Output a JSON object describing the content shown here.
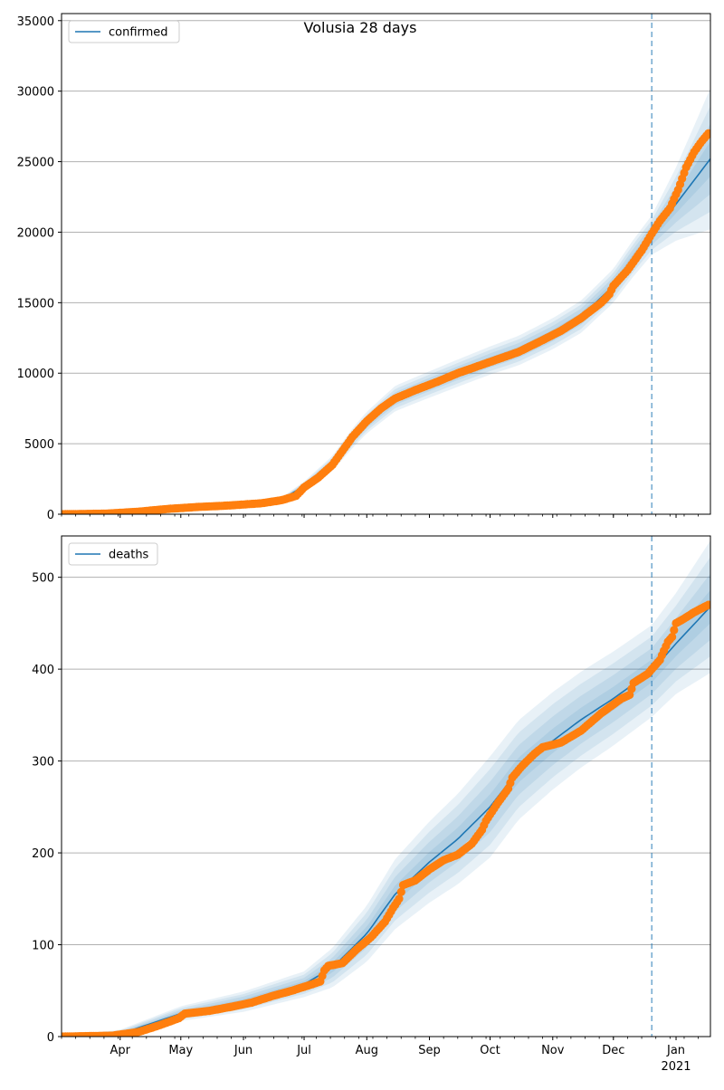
{
  "figure": {
    "title": "Volusia 28 days"
  },
  "colors": {
    "model_line": "#1f77b4",
    "observed_points": "#ff7f0e",
    "band": "#1f77b4",
    "forecast_marker": "#1f77b4",
    "grid": "#b0b0b0"
  },
  "chart_data": [
    {
      "type": "line",
      "title": "Volusia 28 days",
      "legend": {
        "label": "confirmed",
        "placement": "top-left"
      },
      "x_axis": {
        "ticks": [
          {
            "label": "Apr",
            "date": "2020-04-01"
          },
          {
            "label": "May",
            "date": "2020-05-01"
          },
          {
            "label": "Jun",
            "date": "2020-06-01"
          },
          {
            "label": "Jul",
            "date": "2020-07-01"
          },
          {
            "label": "Aug",
            "date": "2020-08-01"
          },
          {
            "label": "Sep",
            "date": "2020-09-01"
          },
          {
            "label": "Oct",
            "date": "2020-10-01"
          },
          {
            "label": "Nov",
            "date": "2020-11-01"
          },
          {
            "label": "Dec",
            "date": "2020-12-01"
          },
          {
            "label": "Jan",
            "sublabel": "2021",
            "date": "2021-01-01"
          }
        ],
        "tick_labels_visible": false,
        "range": [
          "2020-03-03",
          "2021-01-18"
        ]
      },
      "y_axis": {
        "ylim": [
          0,
          35500
        ],
        "ticks": [
          0,
          5000,
          10000,
          15000,
          20000,
          25000,
          30000,
          35000
        ]
      },
      "grid": "y",
      "forecast_start": "2020-12-20",
      "model": [
        {
          "x": "2020-03-03",
          "y": 20
        },
        {
          "x": "2020-03-25",
          "y": 60
        },
        {
          "x": "2020-04-15",
          "y": 250
        },
        {
          "x": "2020-05-01",
          "y": 480
        },
        {
          "x": "2020-06-01",
          "y": 700
        },
        {
          "x": "2020-06-20",
          "y": 1050
        },
        {
          "x": "2020-07-01",
          "y": 2000
        },
        {
          "x": "2020-07-15",
          "y": 3600
        },
        {
          "x": "2020-07-25",
          "y": 5400
        },
        {
          "x": "2020-08-01",
          "y": 6500
        },
        {
          "x": "2020-08-15",
          "y": 8200
        },
        {
          "x": "2020-09-01",
          "y": 9200
        },
        {
          "x": "2020-09-15",
          "y": 10000
        },
        {
          "x": "2020-10-01",
          "y": 10900
        },
        {
          "x": "2020-10-15",
          "y": 11600
        },
        {
          "x": "2020-11-01",
          "y": 12800
        },
        {
          "x": "2020-11-15",
          "y": 14000
        },
        {
          "x": "2020-12-01",
          "y": 16200
        },
        {
          "x": "2020-12-10",
          "y": 18000
        },
        {
          "x": "2020-12-20",
          "y": 19800
        },
        {
          "x": "2021-01-01",
          "y": 22000
        },
        {
          "x": "2021-01-18",
          "y": 25200
        }
      ],
      "band_widths": [
        {
          "x": "2020-03-03",
          "w": 10
        },
        {
          "x": "2020-06-20",
          "w": 150
        },
        {
          "x": "2020-07-25",
          "w": 700
        },
        {
          "x": "2020-08-15",
          "w": 900
        },
        {
          "x": "2020-10-01",
          "w": 1000
        },
        {
          "x": "2020-12-01",
          "w": 1200
        },
        {
          "x": "2020-12-20",
          "w": 1400
        },
        {
          "x": "2021-01-01",
          "w": 2600
        },
        {
          "x": "2021-01-18",
          "w": 5000
        }
      ],
      "observed": [
        {
          "x": "2020-03-03",
          "y": 0
        },
        {
          "x": "2020-03-25",
          "y": 40
        },
        {
          "x": "2020-04-10",
          "y": 180
        },
        {
          "x": "2020-04-25",
          "y": 380
        },
        {
          "x": "2020-05-10",
          "y": 520
        },
        {
          "x": "2020-05-25",
          "y": 620
        },
        {
          "x": "2020-06-10",
          "y": 780
        },
        {
          "x": "2020-06-20",
          "y": 1000
        },
        {
          "x": "2020-06-27",
          "y": 1300
        },
        {
          "x": "2020-07-01",
          "y": 1900
        },
        {
          "x": "2020-07-08",
          "y": 2600
        },
        {
          "x": "2020-07-15",
          "y": 3500
        },
        {
          "x": "2020-07-20",
          "y": 4500
        },
        {
          "x": "2020-07-25",
          "y": 5500
        },
        {
          "x": "2020-08-01",
          "y": 6600
        },
        {
          "x": "2020-08-08",
          "y": 7500
        },
        {
          "x": "2020-08-15",
          "y": 8200
        },
        {
          "x": "2020-08-25",
          "y": 8800
        },
        {
          "x": "2020-09-05",
          "y": 9400
        },
        {
          "x": "2020-09-15",
          "y": 10000
        },
        {
          "x": "2020-09-25",
          "y": 10500
        },
        {
          "x": "2020-10-05",
          "y": 11000
        },
        {
          "x": "2020-10-15",
          "y": 11500
        },
        {
          "x": "2020-10-25",
          "y": 12200
        },
        {
          "x": "2020-11-05",
          "y": 13000
        },
        {
          "x": "2020-11-15",
          "y": 13900
        },
        {
          "x": "2020-11-25",
          "y": 15000
        },
        {
          "x": "2020-11-29",
          "y": 15600
        },
        {
          "x": "2020-12-01",
          "y": 16200
        },
        {
          "x": "2020-12-08",
          "y": 17300
        },
        {
          "x": "2020-12-15",
          "y": 18700
        },
        {
          "x": "2020-12-20",
          "y": 19900
        },
        {
          "x": "2020-12-24",
          "y": 20800
        },
        {
          "x": "2020-12-29",
          "y": 21700
        },
        {
          "x": "2021-01-02",
          "y": 23000
        },
        {
          "x": "2021-01-06",
          "y": 24600
        },
        {
          "x": "2021-01-10",
          "y": 25700
        },
        {
          "x": "2021-01-14",
          "y": 26500
        },
        {
          "x": "2021-01-17",
          "y": 27000
        }
      ]
    },
    {
      "type": "line",
      "legend": {
        "label": "deaths",
        "placement": "top-left"
      },
      "x_axis": {
        "ticks": [
          {
            "label": "Apr",
            "date": "2020-04-01"
          },
          {
            "label": "May",
            "date": "2020-05-01"
          },
          {
            "label": "Jun",
            "date": "2020-06-01"
          },
          {
            "label": "Jul",
            "date": "2020-07-01"
          },
          {
            "label": "Aug",
            "date": "2020-08-01"
          },
          {
            "label": "Sep",
            "date": "2020-09-01"
          },
          {
            "label": "Oct",
            "date": "2020-10-01"
          },
          {
            "label": "Nov",
            "date": "2020-11-01"
          },
          {
            "label": "Dec",
            "date": "2020-12-01"
          },
          {
            "label": "Jan",
            "sublabel": "2021",
            "date": "2021-01-01"
          }
        ],
        "tick_labels_visible": true,
        "range": [
          "2020-03-03",
          "2021-01-18"
        ]
      },
      "y_axis": {
        "ylim": [
          0,
          545
        ],
        "ticks": [
          0,
          100,
          200,
          300,
          400,
          500
        ]
      },
      "grid": "y",
      "forecast_start": "2020-12-20",
      "model": [
        {
          "x": "2020-03-03",
          "y": 0
        },
        {
          "x": "2020-04-01",
          "y": 3
        },
        {
          "x": "2020-05-01",
          "y": 25
        },
        {
          "x": "2020-06-01",
          "y": 38
        },
        {
          "x": "2020-07-01",
          "y": 57
        },
        {
          "x": "2020-07-15",
          "y": 75
        },
        {
          "x": "2020-08-01",
          "y": 112
        },
        {
          "x": "2020-08-15",
          "y": 155
        },
        {
          "x": "2020-09-01",
          "y": 190
        },
        {
          "x": "2020-09-15",
          "y": 215
        },
        {
          "x": "2020-10-01",
          "y": 250
        },
        {
          "x": "2020-10-15",
          "y": 290
        },
        {
          "x": "2020-11-01",
          "y": 322
        },
        {
          "x": "2020-11-15",
          "y": 345
        },
        {
          "x": "2020-12-01",
          "y": 368
        },
        {
          "x": "2020-12-20",
          "y": 398
        },
        {
          "x": "2021-01-01",
          "y": 428
        },
        {
          "x": "2021-01-18",
          "y": 468
        }
      ],
      "band_widths": [
        {
          "x": "2020-03-03",
          "w": 1
        },
        {
          "x": "2020-05-01",
          "w": 8
        },
        {
          "x": "2020-07-01",
          "w": 14
        },
        {
          "x": "2020-08-15",
          "w": 38
        },
        {
          "x": "2020-10-01",
          "w": 55
        },
        {
          "x": "2020-12-20",
          "w": 50
        },
        {
          "x": "2021-01-01",
          "w": 55
        },
        {
          "x": "2021-01-18",
          "w": 72
        }
      ],
      "observed": [
        {
          "x": "2020-03-03",
          "y": 0
        },
        {
          "x": "2020-03-28",
          "y": 1
        },
        {
          "x": "2020-04-10",
          "y": 5
        },
        {
          "x": "2020-04-20",
          "y": 12
        },
        {
          "x": "2020-04-30",
          "y": 20
        },
        {
          "x": "2020-05-03",
          "y": 25
        },
        {
          "x": "2020-05-15",
          "y": 28
        },
        {
          "x": "2020-05-25",
          "y": 32
        },
        {
          "x": "2020-06-05",
          "y": 37
        },
        {
          "x": "2020-06-15",
          "y": 44
        },
        {
          "x": "2020-06-25",
          "y": 50
        },
        {
          "x": "2020-07-05",
          "y": 57
        },
        {
          "x": "2020-07-09",
          "y": 60
        },
        {
          "x": "2020-07-11",
          "y": 72
        },
        {
          "x": "2020-07-13",
          "y": 77
        },
        {
          "x": "2020-07-20",
          "y": 80
        },
        {
          "x": "2020-07-27",
          "y": 95
        },
        {
          "x": "2020-08-03",
          "y": 108
        },
        {
          "x": "2020-08-10",
          "y": 125
        },
        {
          "x": "2020-08-14",
          "y": 140
        },
        {
          "x": "2020-08-17",
          "y": 150
        },
        {
          "x": "2020-08-19",
          "y": 165
        },
        {
          "x": "2020-08-25",
          "y": 170
        },
        {
          "x": "2020-09-01",
          "y": 182
        },
        {
          "x": "2020-09-08",
          "y": 192
        },
        {
          "x": "2020-09-15",
          "y": 198
        },
        {
          "x": "2020-09-22",
          "y": 210
        },
        {
          "x": "2020-09-27",
          "y": 225
        },
        {
          "x": "2020-09-29",
          "y": 235
        },
        {
          "x": "2020-10-05",
          "y": 255
        },
        {
          "x": "2020-10-10",
          "y": 270
        },
        {
          "x": "2020-10-12",
          "y": 282
        },
        {
          "x": "2020-10-17",
          "y": 295
        },
        {
          "x": "2020-10-23",
          "y": 308
        },
        {
          "x": "2020-10-27",
          "y": 315
        },
        {
          "x": "2020-11-05",
          "y": 320
        },
        {
          "x": "2020-11-15",
          "y": 333
        },
        {
          "x": "2020-11-25",
          "y": 352
        },
        {
          "x": "2020-12-05",
          "y": 368
        },
        {
          "x": "2020-12-09",
          "y": 372
        },
        {
          "x": "2020-12-11",
          "y": 385
        },
        {
          "x": "2020-12-18",
          "y": 395
        },
        {
          "x": "2020-12-24",
          "y": 410
        },
        {
          "x": "2020-12-28",
          "y": 430
        },
        {
          "x": "2020-12-30",
          "y": 435
        },
        {
          "x": "2021-01-01",
          "y": 450
        },
        {
          "x": "2021-01-05",
          "y": 455
        },
        {
          "x": "2021-01-10",
          "y": 462
        },
        {
          "x": "2021-01-17",
          "y": 470
        }
      ]
    }
  ]
}
